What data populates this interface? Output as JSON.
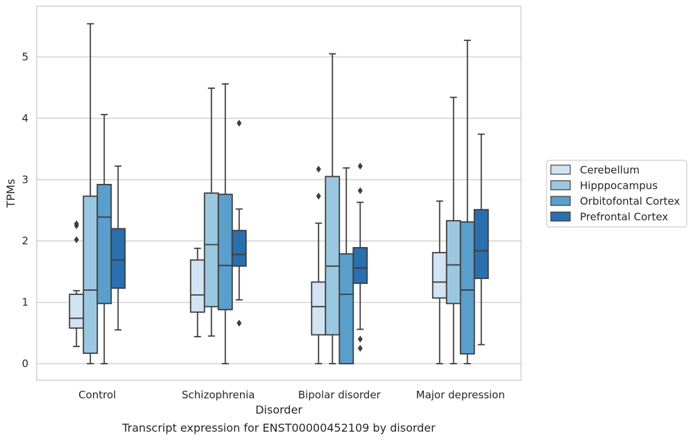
{
  "chart_data": {
    "type": "box",
    "title": "Transcript expression for ENST00000452109 by disorder",
    "xlabel": "Disorder",
    "ylabel": "TPMs",
    "ylim": [
      -0.27,
      5.85
    ],
    "yticks": [
      0,
      1,
      2,
      3,
      4,
      5
    ],
    "grid": "horizontal",
    "legend_position": "right",
    "categories": [
      "Control",
      "Schizophrenia",
      "Bipolar disorder",
      "Major depression"
    ],
    "series": [
      {
        "name": "Cerebellum",
        "color": "#d2e3f3",
        "boxes": [
          {
            "whisker_low": 0.28,
            "q1": 0.58,
            "median": 0.74,
            "q3": 1.13,
            "whisker_high": 1.19,
            "outliers": [
              2.02,
              2.25,
              2.28
            ]
          },
          {
            "whisker_low": 0.44,
            "q1": 0.84,
            "median": 1.12,
            "q3": 1.69,
            "whisker_high": 1.88,
            "outliers": []
          },
          {
            "whisker_low": 0.0,
            "q1": 0.47,
            "median": 0.93,
            "q3": 1.33,
            "whisker_high": 2.29,
            "outliers": [
              2.73,
              3.17
            ]
          },
          {
            "whisker_low": 0.0,
            "q1": 1.07,
            "median": 1.33,
            "q3": 1.81,
            "whisker_high": 2.65,
            "outliers": []
          }
        ]
      },
      {
        "name": "Hipppocampus",
        "color": "#9ac8e0",
        "boxes": [
          {
            "whisker_low": 0.0,
            "q1": 0.17,
            "median": 1.2,
            "q3": 2.73,
            "whisker_high": 5.54,
            "outliers": []
          },
          {
            "whisker_low": 0.45,
            "q1": 0.93,
            "median": 1.94,
            "q3": 2.78,
            "whisker_high": 4.49,
            "outliers": []
          },
          {
            "whisker_low": 0.0,
            "q1": 0.47,
            "median": 1.59,
            "q3": 3.05,
            "whisker_high": 5.05,
            "outliers": []
          },
          {
            "whisker_low": 0.0,
            "q1": 0.98,
            "median": 1.61,
            "q3": 2.33,
            "whisker_high": 4.34,
            "outliers": []
          }
        ]
      },
      {
        "name": "Orbitofontal Cortex",
        "color": "#5a9ecc",
        "boxes": [
          {
            "whisker_low": 0.0,
            "q1": 0.98,
            "median": 2.39,
            "q3": 2.92,
            "whisker_high": 4.06,
            "outliers": []
          },
          {
            "whisker_low": 0.0,
            "q1": 0.88,
            "median": 1.6,
            "q3": 2.76,
            "whisker_high": 4.56,
            "outliers": []
          },
          {
            "whisker_low": 0.0,
            "q1": 0.0,
            "median": 1.13,
            "q3": 1.79,
            "whisker_high": 3.19,
            "outliers": []
          },
          {
            "whisker_low": 0.0,
            "q1": 0.16,
            "median": 1.2,
            "q3": 2.31,
            "whisker_high": 5.27,
            "outliers": []
          }
        ]
      },
      {
        "name": "Prefrontal Cortex",
        "color": "#2a6fae",
        "boxes": [
          {
            "whisker_low": 0.55,
            "q1": 1.23,
            "median": 1.69,
            "q3": 2.2,
            "whisker_high": 3.22,
            "outliers": []
          },
          {
            "whisker_low": 1.04,
            "q1": 1.59,
            "median": 1.78,
            "q3": 2.17,
            "whisker_high": 2.52,
            "outliers": [
              0.66,
              3.92
            ]
          },
          {
            "whisker_low": 0.56,
            "q1": 1.31,
            "median": 1.56,
            "q3": 1.89,
            "whisker_high": 2.63,
            "outliers": [
              0.25,
              0.4,
              2.82,
              3.22
            ]
          },
          {
            "whisker_low": 0.31,
            "q1": 1.39,
            "median": 1.84,
            "q3": 2.51,
            "whisker_high": 3.74,
            "outliers": []
          }
        ]
      }
    ]
  }
}
